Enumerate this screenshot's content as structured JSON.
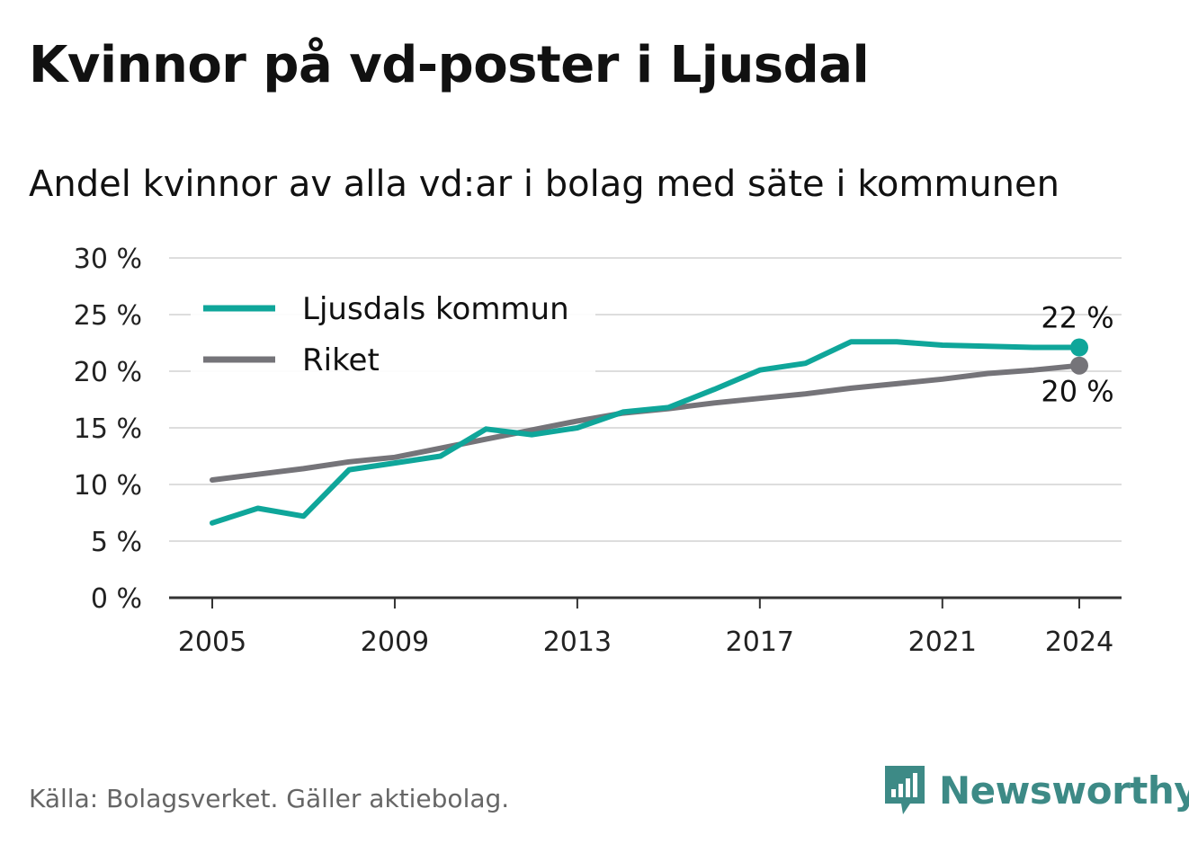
{
  "title": "Kvinnor på vd-poster i Ljusdal",
  "subtitle": "Andel kvinnor av alla vd:ar i bolag med säte i kommunen",
  "source": "Källa: Bolagsverket. Gäller aktiebolag.",
  "brand": "Newsworthy",
  "colors": {
    "ljusdal": "#0fa69a",
    "riket": "#757479",
    "grid": "#dddddd",
    "axis": "#333333",
    "brand": "#3d8a86"
  },
  "chart_data": {
    "type": "line",
    "title": "Kvinnor på vd-poster i Ljusdal",
    "subtitle": "Andel kvinnor av alla vd:ar i bolag med säte i kommunen",
    "xlabel": "",
    "ylabel": "",
    "x": [
      2005,
      2006,
      2007,
      2008,
      2009,
      2010,
      2011,
      2012,
      2013,
      2014,
      2015,
      2016,
      2017,
      2018,
      2019,
      2020,
      2021,
      2022,
      2023,
      2024
    ],
    "x_ticks": [
      "2005",
      "2009",
      "2013",
      "2017",
      "2021",
      "2024"
    ],
    "x_tick_values": [
      2005,
      2009,
      2013,
      2017,
      2021,
      2024
    ],
    "ylim": [
      0,
      30
    ],
    "y_ticks": [
      0,
      5,
      10,
      15,
      20,
      25,
      30
    ],
    "y_tick_labels": [
      "0 %",
      "5 %",
      "10 %",
      "15 %",
      "20 %",
      "25 %",
      "30 %"
    ],
    "grid": true,
    "legend_position": "top-left",
    "series": [
      {
        "name": "Ljusdals kommun",
        "values": [
          6.6,
          7.9,
          7.2,
          11.3,
          11.9,
          12.5,
          14.9,
          14.4,
          15.0,
          16.4,
          16.8,
          18.4,
          20.1,
          20.7,
          22.6,
          22.6,
          22.3,
          22.2,
          22.1,
          22.1
        ],
        "end_label": "22 %"
      },
      {
        "name": "Riket",
        "values": [
          10.4,
          10.9,
          11.4,
          12.0,
          12.4,
          13.2,
          14.0,
          14.8,
          15.6,
          16.3,
          16.7,
          17.2,
          17.6,
          18.0,
          18.5,
          18.9,
          19.3,
          19.8,
          20.1,
          20.5
        ],
        "end_label": "20 %"
      }
    ]
  }
}
